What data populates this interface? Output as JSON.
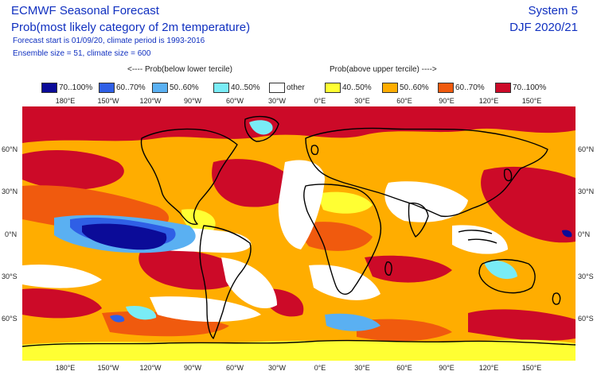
{
  "header": {
    "title": "ECMWF Seasonal Forecast",
    "subtitle": "Prob(most likely category of 2m temperature)",
    "forecast_line": "Forecast start is 01/09/20, climate period is 1993-2016",
    "ensemble_line": "Ensemble size = 51, climate size = 600",
    "system": "System 5",
    "season": "DJF 2020/21"
  },
  "legend": {
    "below_label": "<---- Prob(below lower tercile)",
    "above_label": "Prob(above upper tercile) ---->",
    "items": [
      {
        "label": "70..100%",
        "color": "#0b0b98"
      },
      {
        "label": "60..70%",
        "color": "#2f5fe6"
      },
      {
        "label": "50..60%",
        "color": "#5ab0f2"
      },
      {
        "label": "40..50%",
        "color": "#79ecf6"
      },
      {
        "label": "other",
        "color": "#ffffff"
      },
      {
        "label": "40..50%",
        "color": "#ffff33"
      },
      {
        "label": "50..60%",
        "color": "#ffad00"
      },
      {
        "label": "60..70%",
        "color": "#f05a0e"
      },
      {
        "label": "70..100%",
        "color": "#cc0a28"
      }
    ]
  },
  "axes": {
    "lon_labels": [
      "180°E",
      "150°W",
      "120°W",
      "90°W",
      "60°W",
      "30°W",
      "0°E",
      "30°E",
      "60°E",
      "90°E",
      "120°E",
      "150°E"
    ],
    "lat_labels_left": [
      "60°N",
      "30°N",
      "0°N",
      "30°S",
      "60°S"
    ],
    "lat_labels_right": [
      "60°N",
      "30°N",
      "0°N",
      "30°S",
      "60°S"
    ]
  },
  "colors": {
    "text_blue": "#1030c0",
    "coast": "#000000"
  }
}
